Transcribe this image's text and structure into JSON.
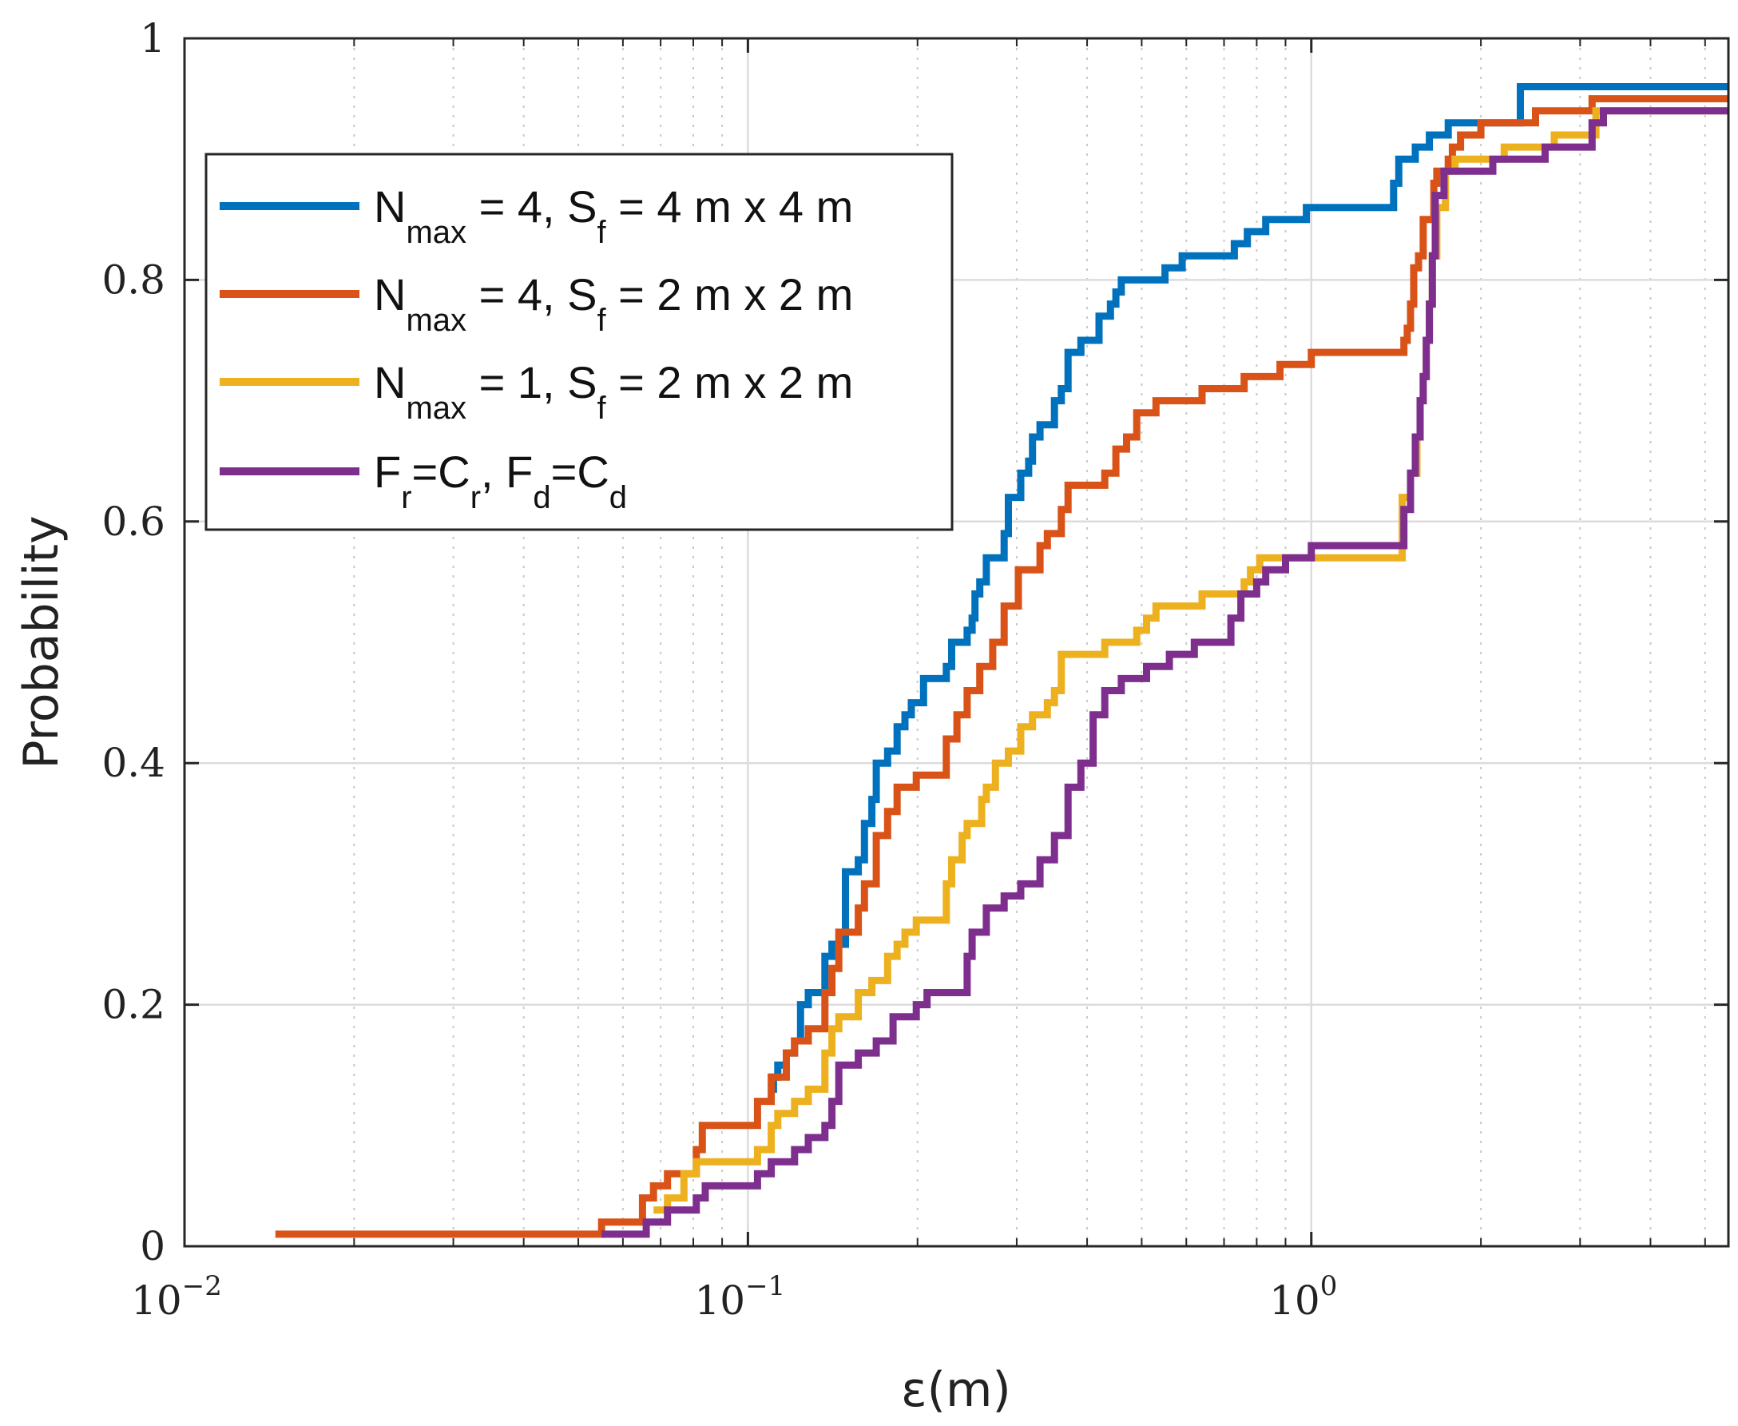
{
  "chart_data": {
    "type": "line",
    "step": true,
    "xscale": "log",
    "xlabel": "ε(m)",
    "ylabel": "Probability",
    "xlim": [
      0.01,
      5.5
    ],
    "ylim": [
      0,
      1
    ],
    "grid": true,
    "yticks": [
      0,
      0.2,
      0.4,
      0.6,
      0.8,
      1
    ],
    "ytick_labels": [
      "0",
      "0.2",
      "0.4",
      "0.6",
      "0.8",
      "1"
    ],
    "xticks": [
      {
        "value": 0.01,
        "base": "10",
        "exp": "−2"
      },
      {
        "value": 0.1,
        "base": "10",
        "exp": "−1"
      },
      {
        "value": 1,
        "base": "10",
        "exp": "0"
      }
    ],
    "legend": {
      "position": "upper-left",
      "entries": [
        {
          "main": "N",
          "sub": "max",
          "mid": " = 4, S",
          "sub2": "f",
          "rest": " = 4 m x 4 m"
        },
        {
          "main": "N",
          "sub": "max",
          "mid": " = 4, S",
          "sub2": "f",
          "rest": " = 2 m x 2 m"
        },
        {
          "main": "N",
          "sub": "max",
          "mid": " = 1, S",
          "sub2": "f",
          "rest": " = 2 m x 2 m"
        },
        {
          "main": "F",
          "sub": "r",
          "mid": "=C",
          "sub2": "r",
          "rest": ", F",
          "sub3": "d",
          "rest2": "=C",
          "sub4": "d"
        }
      ]
    },
    "series": [
      {
        "name": "Nmax = 4, Sf = 4 m x 4 m",
        "color": "#0072BD",
        "points": [
          [
            0.11,
            0.13
          ],
          [
            0.111,
            0.14
          ],
          [
            0.113,
            0.15
          ],
          [
            0.117,
            0.16
          ],
          [
            0.121,
            0.17
          ],
          [
            0.124,
            0.2
          ],
          [
            0.128,
            0.21
          ],
          [
            0.137,
            0.24
          ],
          [
            0.141,
            0.25
          ],
          [
            0.149,
            0.31
          ],
          [
            0.157,
            0.32
          ],
          [
            0.161,
            0.35
          ],
          [
            0.166,
            0.37
          ],
          [
            0.169,
            0.4
          ],
          [
            0.177,
            0.41
          ],
          [
            0.184,
            0.43
          ],
          [
            0.19,
            0.44
          ],
          [
            0.195,
            0.45
          ],
          [
            0.205,
            0.47
          ],
          [
            0.225,
            0.48
          ],
          [
            0.23,
            0.5
          ],
          [
            0.245,
            0.51
          ],
          [
            0.25,
            0.52
          ],
          [
            0.253,
            0.54
          ],
          [
            0.258,
            0.55
          ],
          [
            0.265,
            0.57
          ],
          [
            0.285,
            0.59
          ],
          [
            0.29,
            0.62
          ],
          [
            0.305,
            0.64
          ],
          [
            0.315,
            0.65
          ],
          [
            0.32,
            0.67
          ],
          [
            0.33,
            0.68
          ],
          [
            0.35,
            0.7
          ],
          [
            0.36,
            0.71
          ],
          [
            0.37,
            0.74
          ],
          [
            0.39,
            0.75
          ],
          [
            0.42,
            0.77
          ],
          [
            0.44,
            0.78
          ],
          [
            0.45,
            0.79
          ],
          [
            0.46,
            0.8
          ],
          [
            0.55,
            0.81
          ],
          [
            0.59,
            0.82
          ],
          [
            0.73,
            0.83
          ],
          [
            0.77,
            0.84
          ],
          [
            0.83,
            0.85
          ],
          [
            0.98,
            0.86
          ],
          [
            1.4,
            0.88
          ],
          [
            1.43,
            0.9
          ],
          [
            1.53,
            0.91
          ],
          [
            1.62,
            0.92
          ],
          [
            1.75,
            0.93
          ],
          [
            2.35,
            0.96
          ],
          [
            5.5,
            0.96
          ]
        ]
      },
      {
        "name": "Nmax = 4, Sf = 2 m x 2 m",
        "color": "#D95319",
        "points": [
          [
            0.0145,
            0.01
          ],
          [
            0.055,
            0.02
          ],
          [
            0.065,
            0.04
          ],
          [
            0.068,
            0.05
          ],
          [
            0.072,
            0.06
          ],
          [
            0.081,
            0.08
          ],
          [
            0.083,
            0.1
          ],
          [
            0.104,
            0.12
          ],
          [
            0.11,
            0.14
          ],
          [
            0.117,
            0.16
          ],
          [
            0.121,
            0.17
          ],
          [
            0.128,
            0.18
          ],
          [
            0.137,
            0.21
          ],
          [
            0.141,
            0.23
          ],
          [
            0.145,
            0.26
          ],
          [
            0.157,
            0.28
          ],
          [
            0.161,
            0.3
          ],
          [
            0.169,
            0.34
          ],
          [
            0.177,
            0.36
          ],
          [
            0.184,
            0.38
          ],
          [
            0.199,
            0.39
          ],
          [
            0.225,
            0.42
          ],
          [
            0.235,
            0.44
          ],
          [
            0.245,
            0.46
          ],
          [
            0.258,
            0.48
          ],
          [
            0.272,
            0.5
          ],
          [
            0.285,
            0.53
          ],
          [
            0.302,
            0.56
          ],
          [
            0.33,
            0.58
          ],
          [
            0.34,
            0.59
          ],
          [
            0.36,
            0.61
          ],
          [
            0.37,
            0.63
          ],
          [
            0.43,
            0.64
          ],
          [
            0.45,
            0.66
          ],
          [
            0.47,
            0.67
          ],
          [
            0.49,
            0.69
          ],
          [
            0.53,
            0.7
          ],
          [
            0.64,
            0.71
          ],
          [
            0.76,
            0.72
          ],
          [
            0.88,
            0.73
          ],
          [
            1.0,
            0.74
          ],
          [
            1.46,
            0.75
          ],
          [
            1.48,
            0.76
          ],
          [
            1.5,
            0.78
          ],
          [
            1.52,
            0.81
          ],
          [
            1.55,
            0.82
          ],
          [
            1.58,
            0.85
          ],
          [
            1.65,
            0.88
          ],
          [
            1.67,
            0.89
          ],
          [
            1.75,
            0.9
          ],
          [
            1.78,
            0.91
          ],
          [
            1.84,
            0.92
          ],
          [
            2.0,
            0.93
          ],
          [
            2.5,
            0.94
          ],
          [
            3.15,
            0.95
          ],
          [
            5.5,
            0.95
          ]
        ]
      },
      {
        "name": "Nmax = 1, Sf = 2 m x 2 m",
        "color": "#EDB120",
        "points": [
          [
            0.068,
            0.03
          ],
          [
            0.072,
            0.04
          ],
          [
            0.077,
            0.06
          ],
          [
            0.081,
            0.07
          ],
          [
            0.104,
            0.08
          ],
          [
            0.11,
            0.1
          ],
          [
            0.113,
            0.11
          ],
          [
            0.121,
            0.12
          ],
          [
            0.128,
            0.13
          ],
          [
            0.137,
            0.16
          ],
          [
            0.141,
            0.18
          ],
          [
            0.145,
            0.19
          ],
          [
            0.157,
            0.21
          ],
          [
            0.166,
            0.22
          ],
          [
            0.177,
            0.24
          ],
          [
            0.184,
            0.25
          ],
          [
            0.19,
            0.26
          ],
          [
            0.199,
            0.27
          ],
          [
            0.225,
            0.3
          ],
          [
            0.23,
            0.32
          ],
          [
            0.24,
            0.34
          ],
          [
            0.245,
            0.35
          ],
          [
            0.26,
            0.37
          ],
          [
            0.265,
            0.38
          ],
          [
            0.275,
            0.4
          ],
          [
            0.29,
            0.41
          ],
          [
            0.305,
            0.43
          ],
          [
            0.32,
            0.44
          ],
          [
            0.34,
            0.45
          ],
          [
            0.35,
            0.46
          ],
          [
            0.36,
            0.49
          ],
          [
            0.43,
            0.5
          ],
          [
            0.49,
            0.51
          ],
          [
            0.51,
            0.52
          ],
          [
            0.53,
            0.53
          ],
          [
            0.64,
            0.54
          ],
          [
            0.76,
            0.55
          ],
          [
            0.78,
            0.56
          ],
          [
            0.81,
            0.57
          ],
          [
            0.88,
            0.57
          ],
          [
            1.45,
            0.62
          ],
          [
            1.5,
            0.64
          ],
          [
            1.54,
            0.67
          ],
          [
            1.56,
            0.7
          ],
          [
            1.58,
            0.72
          ],
          [
            1.6,
            0.75
          ],
          [
            1.62,
            0.78
          ],
          [
            1.64,
            0.82
          ],
          [
            1.67,
            0.86
          ],
          [
            1.73,
            0.89
          ],
          [
            1.8,
            0.9
          ],
          [
            2.2,
            0.91
          ],
          [
            2.7,
            0.92
          ],
          [
            3.2,
            0.94
          ],
          [
            5.5,
            0.94
          ]
        ]
      },
      {
        "name": "Fr=Cr, Fd=Cd",
        "color": "#7E2F8E",
        "points": [
          [
            0.055,
            0.01
          ],
          [
            0.066,
            0.02
          ],
          [
            0.072,
            0.03
          ],
          [
            0.081,
            0.04
          ],
          [
            0.084,
            0.05
          ],
          [
            0.104,
            0.06
          ],
          [
            0.11,
            0.07
          ],
          [
            0.121,
            0.08
          ],
          [
            0.128,
            0.09
          ],
          [
            0.137,
            0.1
          ],
          [
            0.141,
            0.12
          ],
          [
            0.145,
            0.15
          ],
          [
            0.157,
            0.16
          ],
          [
            0.169,
            0.17
          ],
          [
            0.181,
            0.19
          ],
          [
            0.199,
            0.2
          ],
          [
            0.208,
            0.21
          ],
          [
            0.245,
            0.24
          ],
          [
            0.25,
            0.26
          ],
          [
            0.265,
            0.28
          ],
          [
            0.285,
            0.29
          ],
          [
            0.305,
            0.3
          ],
          [
            0.33,
            0.32
          ],
          [
            0.35,
            0.34
          ],
          [
            0.37,
            0.38
          ],
          [
            0.39,
            0.4
          ],
          [
            0.41,
            0.44
          ],
          [
            0.43,
            0.46
          ],
          [
            0.46,
            0.47
          ],
          [
            0.51,
            0.48
          ],
          [
            0.56,
            0.49
          ],
          [
            0.62,
            0.5
          ],
          [
            0.72,
            0.52
          ],
          [
            0.75,
            0.54
          ],
          [
            0.8,
            0.55
          ],
          [
            0.83,
            0.56
          ],
          [
            0.9,
            0.57
          ],
          [
            1.0,
            0.58
          ],
          [
            1.46,
            0.61
          ],
          [
            1.5,
            0.64
          ],
          [
            1.53,
            0.67
          ],
          [
            1.56,
            0.7
          ],
          [
            1.58,
            0.72
          ],
          [
            1.6,
            0.75
          ],
          [
            1.62,
            0.78
          ],
          [
            1.64,
            0.82
          ],
          [
            1.66,
            0.87
          ],
          [
            1.72,
            0.89
          ],
          [
            2.1,
            0.9
          ],
          [
            2.6,
            0.91
          ],
          [
            3.15,
            0.93
          ],
          [
            3.3,
            0.94
          ],
          [
            5.5,
            0.94
          ]
        ]
      }
    ]
  }
}
